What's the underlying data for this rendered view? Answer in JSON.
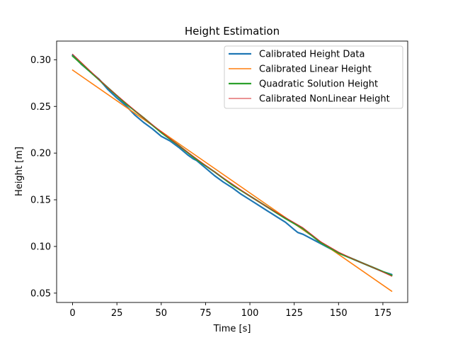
{
  "chart_data": {
    "type": "line",
    "title": "Height Estimation",
    "xlabel": "Time [s]",
    "ylabel": "Height [m]",
    "xlim": [
      -9,
      189
    ],
    "ylim": [
      0.04,
      0.32
    ],
    "xticks": [
      0,
      25,
      50,
      75,
      100,
      125,
      150,
      175
    ],
    "yticks": [
      0.05,
      0.1,
      0.15,
      0.2,
      0.25,
      0.3
    ],
    "grid": false,
    "legend_position": "top-right",
    "series": [
      {
        "name": "Calibrated Height Data",
        "color": "#1f77b4",
        "x": [
          0,
          5,
          10,
          15,
          20,
          25,
          30,
          35,
          40,
          45,
          50,
          55,
          60,
          65,
          68,
          70,
          75,
          80,
          85,
          90,
          95,
          100,
          105,
          110,
          115,
          120,
          125,
          127,
          130,
          135,
          140,
          145,
          150,
          155,
          160,
          165,
          170,
          175,
          180
        ],
        "y": [
          0.305,
          0.295,
          0.287,
          0.279,
          0.268,
          0.259,
          0.251,
          0.241,
          0.233,
          0.226,
          0.218,
          0.213,
          0.206,
          0.198,
          0.194,
          0.192,
          0.184,
          0.176,
          0.169,
          0.163,
          0.156,
          0.15,
          0.144,
          0.138,
          0.132,
          0.126,
          0.118,
          0.115,
          0.113,
          0.108,
          0.103,
          0.098,
          0.093,
          0.089,
          0.085,
          0.081,
          0.077,
          0.073,
          0.07
        ]
      },
      {
        "name": "Calibrated Linear Height",
        "color": "#ff7f0e",
        "x": [
          0,
          180
        ],
        "y": [
          0.289,
          0.052
        ]
      },
      {
        "name": "Quadratic Solution Height",
        "color": "#2ca02c",
        "x": [
          0,
          10,
          20,
          30,
          40,
          50,
          60,
          70,
          80,
          90,
          100,
          110,
          120,
          130,
          140,
          150,
          160,
          170,
          180
        ],
        "y": [
          0.304,
          0.287,
          0.27,
          0.253,
          0.238,
          0.222,
          0.208,
          0.193,
          0.18,
          0.166,
          0.154,
          0.142,
          0.13,
          0.119,
          0.104,
          0.093,
          0.085,
          0.077,
          0.069
        ]
      },
      {
        "name": "Calibrated NonLinear Height",
        "color": "#d62728",
        "x": [
          0,
          10,
          20,
          30,
          40,
          50,
          60,
          70,
          80,
          90,
          100,
          110,
          120,
          130,
          140,
          150,
          160,
          170,
          180
        ],
        "y": [
          0.306,
          0.288,
          0.27,
          0.254,
          0.238,
          0.223,
          0.208,
          0.194,
          0.18,
          0.167,
          0.154,
          0.142,
          0.131,
          0.12,
          0.105,
          0.094,
          0.085,
          0.077,
          0.068
        ]
      }
    ]
  }
}
